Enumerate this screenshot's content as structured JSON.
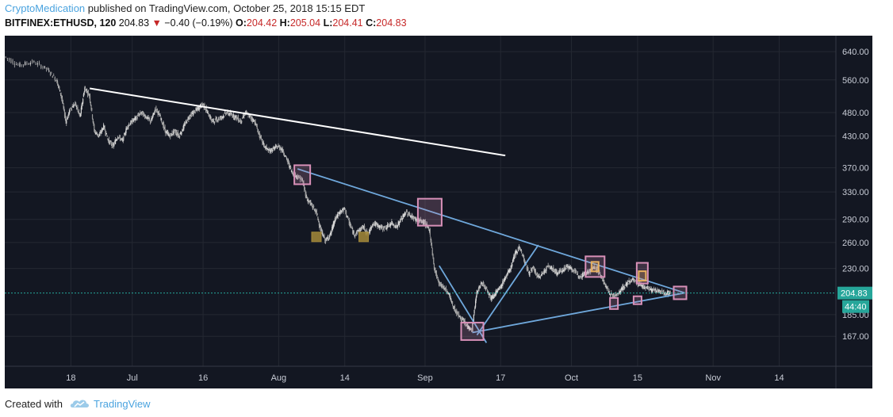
{
  "header": {
    "author": "CryptoMedication",
    "published_text": " published on TradingView.com, October 25, 2018 15:15 EDT",
    "symbol": "BITFINEX:ETHUSD, 120",
    "last": "204.83",
    "change": "−0.40 (−0.19%)",
    "o_label": "O:",
    "o_value": "204.42",
    "h_label": "H:",
    "h_value": "205.04",
    "l_label": "L:",
    "l_value": "204.41",
    "c_label": "C:",
    "c_value": "204.83"
  },
  "footer": {
    "created_with": "Created with",
    "brand": "TradingView"
  },
  "colors": {
    "background": "#131722",
    "grid": "#242832",
    "axis_text": "#c8ccd6",
    "candle": "#c9c9c9",
    "white_line": "#ffffff",
    "blue_line": "#6fa8dc",
    "teal_line": "#7fb3d5",
    "pink_box": "#d890b8",
    "orange_box": "#e8b060",
    "olive_box": "#a48a3a",
    "price_label": "#26a69a"
  },
  "chart_data": {
    "type": "candlestick",
    "symbol": "BITFINEX:ETHUSD",
    "interval": "120",
    "y_scale": "log",
    "ylim": [
      145,
      690
    ],
    "y_ticks": [
      640,
      560,
      480,
      430,
      370,
      330,
      290,
      260,
      230,
      185,
      167
    ],
    "y_tick_labels": [
      "640.00",
      "560.00",
      "480.00",
      "430.00",
      "370.00",
      "330.00",
      "290.00",
      "260.00",
      "230.00",
      "185.00",
      "167.00"
    ],
    "x_tick_labels": [
      "18",
      "Jul",
      "16",
      "Aug",
      "14",
      "Sep",
      "17",
      "Oct",
      "15",
      "Nov",
      "14"
    ],
    "x_tick_days": [
      18,
      31,
      46,
      62,
      76,
      93,
      109,
      124,
      138,
      154,
      168
    ],
    "x_range_days": [
      4,
      180
    ],
    "last_price": 204.83,
    "last_price_label": "204.83",
    "countdown_label": "44:40",
    "price_path": [
      [
        4,
        625
      ],
      [
        7,
        600
      ],
      [
        10,
        610
      ],
      [
        13,
        590
      ],
      [
        15,
        560
      ],
      [
        16,
        520
      ],
      [
        17,
        460
      ],
      [
        18,
        490
      ],
      [
        19,
        500
      ],
      [
        20,
        470
      ],
      [
        21,
        540
      ],
      [
        22,
        520
      ],
      [
        23,
        440
      ],
      [
        24,
        430
      ],
      [
        25,
        450
      ],
      [
        26,
        420
      ],
      [
        27,
        410
      ],
      [
        28,
        430
      ],
      [
        29,
        420
      ],
      [
        30,
        450
      ],
      [
        31,
        460
      ],
      [
        32,
        470
      ],
      [
        33,
        480
      ],
      [
        34,
        470
      ],
      [
        35,
        460
      ],
      [
        36,
        490
      ],
      [
        37,
        470
      ],
      [
        38,
        440
      ],
      [
        39,
        430
      ],
      [
        40,
        440
      ],
      [
        41,
        430
      ],
      [
        42,
        450
      ],
      [
        43,
        470
      ],
      [
        44,
        480
      ],
      [
        45,
        490
      ],
      [
        46,
        500
      ],
      [
        47,
        480
      ],
      [
        48,
        460
      ],
      [
        49,
        465
      ],
      [
        50,
        470
      ],
      [
        51,
        480
      ],
      [
        52,
        475
      ],
      [
        53,
        470
      ],
      [
        54,
        460
      ],
      [
        55,
        480
      ],
      [
        56,
        470
      ],
      [
        57,
        460
      ],
      [
        58,
        430
      ],
      [
        59,
        410
      ],
      [
        60,
        400
      ],
      [
        61,
        405
      ],
      [
        62,
        410
      ],
      [
        63,
        400
      ],
      [
        64,
        380
      ],
      [
        65,
        360
      ],
      [
        66,
        355
      ],
      [
        67,
        350
      ],
      [
        68,
        320
      ],
      [
        69,
        310
      ],
      [
        70,
        300
      ],
      [
        71,
        275
      ],
      [
        72,
        262
      ],
      [
        73,
        270
      ],
      [
        74,
        290
      ],
      [
        75,
        300
      ],
      [
        76,
        305
      ],
      [
        77,
        285
      ],
      [
        78,
        270
      ],
      [
        79,
        275
      ],
      [
        80,
        280
      ],
      [
        81,
        270
      ],
      [
        82,
        285
      ],
      [
        83,
        282
      ],
      [
        84,
        278
      ],
      [
        85,
        280
      ],
      [
        86,
        285
      ],
      [
        87,
        280
      ],
      [
        88,
        290
      ],
      [
        89,
        300
      ],
      [
        90,
        295
      ],
      [
        91,
        290
      ],
      [
        92,
        288
      ],
      [
        93,
        285
      ],
      [
        94,
        275
      ],
      [
        95,
        230
      ],
      [
        96,
        215
      ],
      [
        97,
        210
      ],
      [
        98,
        205
      ],
      [
        99,
        192
      ],
      [
        100,
        185
      ],
      [
        101,
        180
      ],
      [
        102,
        175
      ],
      [
        103,
        172
      ],
      [
        104,
        205
      ],
      [
        105,
        215
      ],
      [
        106,
        210
      ],
      [
        107,
        200
      ],
      [
        108,
        205
      ],
      [
        109,
        210
      ],
      [
        110,
        220
      ],
      [
        111,
        228
      ],
      [
        112,
        245
      ],
      [
        113,
        255
      ],
      [
        114,
        240
      ],
      [
        115,
        225
      ],
      [
        116,
        230
      ],
      [
        117,
        220
      ],
      [
        118,
        225
      ],
      [
        119,
        232
      ],
      [
        120,
        230
      ],
      [
        121,
        225
      ],
      [
        122,
        228
      ],
      [
        123,
        232
      ],
      [
        124,
        230
      ],
      [
        125,
        225
      ],
      [
        126,
        222
      ],
      [
        127,
        225
      ],
      [
        128,
        228
      ],
      [
        129,
        232
      ],
      [
        130,
        225
      ],
      [
        131,
        215
      ],
      [
        132,
        205
      ],
      [
        133,
        202
      ],
      [
        134,
        205
      ],
      [
        135,
        210
      ],
      [
        136,
        215
      ],
      [
        137,
        218
      ],
      [
        138,
        215
      ],
      [
        139,
        212
      ],
      [
        140,
        210
      ],
      [
        141,
        208
      ],
      [
        142,
        207
      ],
      [
        143,
        206
      ],
      [
        144,
        205
      ],
      [
        145,
        204.83
      ]
    ],
    "trendlines": [
      {
        "name": "white-downtrend",
        "x1": 22,
        "y1": 538,
        "x2": 110,
        "y2": 392
      },
      {
        "name": "descending-resistance",
        "x1": 66,
        "y1": 368,
        "x2": 148,
        "y2": 205
      },
      {
        "name": "ascending-support",
        "x1": 103,
        "y1": 170,
        "x2": 148,
        "y2": 205
      },
      {
        "name": "steep-down-line",
        "x1": 96,
        "y1": 233,
        "x2": 106,
        "y2": 162
      },
      {
        "name": "up-line",
        "x1": 104,
        "y1": 168,
        "x2": 117,
        "y2": 257
      }
    ],
    "markers": [
      {
        "name": "box-aug-top",
        "kind": "pink",
        "x": 67,
        "y": 358
      },
      {
        "name": "box-sep-top",
        "kind": "pink",
        "x": 94,
        "y": 300
      },
      {
        "name": "box-sep-low",
        "kind": "pink",
        "x": 103,
        "y": 171
      },
      {
        "name": "box-oct-1",
        "kind": "pink",
        "x": 129,
        "y": 232
      },
      {
        "name": "box-oct-2",
        "kind": "pink",
        "x": 139,
        "y": 225
      },
      {
        "name": "box-end",
        "kind": "pink",
        "x": 147,
        "y": 205
      },
      {
        "name": "box-oct-low1",
        "kind": "pink",
        "x": 133,
        "y": 195
      },
      {
        "name": "box-oct-low2",
        "kind": "pink",
        "x": 138,
        "y": 198
      },
      {
        "name": "orange-oct-1",
        "kind": "orange",
        "x": 129,
        "y": 232
      },
      {
        "name": "orange-oct-2",
        "kind": "orange",
        "x": 139,
        "y": 222
      },
      {
        "name": "olive-aug-1",
        "kind": "olive",
        "x": 70,
        "y": 267
      },
      {
        "name": "olive-aug-2",
        "kind": "olive",
        "x": 80,
        "y": 267
      }
    ]
  }
}
